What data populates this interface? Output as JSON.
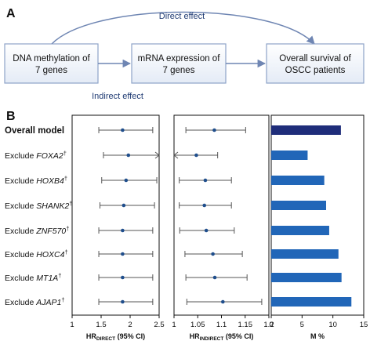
{
  "panel_a": {
    "letter": "A",
    "boxes": [
      {
        "line1": "DNA methylation of",
        "line2": "7 genes"
      },
      {
        "line1": "mRNA expression of",
        "line2": "7 genes"
      },
      {
        "line1": "Overall survival of",
        "line2": "OSCC patients"
      }
    ],
    "direct_label": "Direct effect",
    "indirect_label": "Indirect effect"
  },
  "panel_b": {
    "letter": "B",
    "rows": [
      {
        "prefix": "Overall model",
        "gene": "",
        "sup": ""
      },
      {
        "prefix": "Exclude ",
        "gene": "FOXA2",
        "sup": "†"
      },
      {
        "prefix": "Exclude ",
        "gene": "HOXB4",
        "sup": "†"
      },
      {
        "prefix": "Exclude ",
        "gene": "SHANK2",
        "sup": "†"
      },
      {
        "prefix": "Exclude ",
        "gene": "ZNF570",
        "sup": "†"
      },
      {
        "prefix": "Exclude ",
        "gene": "HOXC4",
        "sup": "†"
      },
      {
        "prefix": "Exclude ",
        "gene": "MT1A",
        "sup": "†"
      },
      {
        "prefix": "Exclude ",
        "gene": "AJAP1",
        "sup": "†"
      }
    ],
    "colors": {
      "point": "#1f4e8c",
      "bar": "#2166b8",
      "bar_first": "#1f2d7a",
      "whisker": "#555555"
    }
  },
  "chart_data": [
    {
      "type": "scatter",
      "title": "",
      "xlabel": "HR_DIRECT (95% CI)",
      "xlabel_main": "HR",
      "xlabel_sub": "DIRECT",
      "xlabel_tail": " (95% CI)",
      "xlim": [
        1,
        2.5
      ],
      "xticks": [
        "1",
        "1.5",
        "2",
        "2.5"
      ],
      "categories": [
        "Overall model",
        "Exclude FOXA2",
        "Exclude HOXB4",
        "Exclude SHANK2",
        "Exclude ZNF570",
        "Exclude HOXC4",
        "Exclude MT1A",
        "Exclude AJAP1"
      ],
      "estimate": [
        1.87,
        1.97,
        1.93,
        1.89,
        1.87,
        1.87,
        1.87,
        1.87
      ],
      "lower": [
        1.46,
        1.54,
        1.51,
        1.48,
        1.46,
        1.46,
        1.46,
        1.46
      ],
      "upper": [
        2.39,
        2.5,
        2.46,
        2.42,
        2.39,
        2.39,
        2.39,
        2.39
      ],
      "arrow_right": [
        false,
        true,
        false,
        false,
        false,
        false,
        false,
        false
      ]
    },
    {
      "type": "scatter",
      "title": "",
      "xlabel": "HR_INDIRECT (95% CI)",
      "xlabel_main": "HR",
      "xlabel_sub": "INDIRECT",
      "xlabel_tail": " (95% CI)",
      "xlim": [
        1,
        1.2
      ],
      "xticks": [
        "1",
        "1.05",
        "1.1",
        "1.15",
        "1.2"
      ],
      "categories": [
        "Overall model",
        "Exclude FOXA2",
        "Exclude HOXB4",
        "Exclude SHANK2",
        "Exclude ZNF570",
        "Exclude HOXC4",
        "Exclude MT1A",
        "Exclude AJAP1"
      ],
      "estimate": [
        1.085,
        1.047,
        1.066,
        1.064,
        1.068,
        1.082,
        1.086,
        1.103
      ],
      "lower": [
        1.025,
        1.0,
        1.011,
        1.011,
        1.012,
        1.023,
        1.025,
        1.027
      ],
      "upper": [
        1.151,
        1.092,
        1.121,
        1.121,
        1.127,
        1.144,
        1.154,
        1.185
      ],
      "arrow_left": [
        false,
        true,
        false,
        false,
        false,
        false,
        false,
        false
      ]
    },
    {
      "type": "bar",
      "title": "",
      "xlabel": "M %",
      "xlim": [
        0,
        15
      ],
      "xticks": [
        "0",
        "5",
        "10",
        "15"
      ],
      "categories": [
        "Overall model",
        "Exclude FOXA2",
        "Exclude HOXB4",
        "Exclude SHANK2",
        "Exclude ZNF570",
        "Exclude HOXC4",
        "Exclude MT1A",
        "Exclude AJAP1"
      ],
      "values": [
        11.3,
        5.9,
        8.6,
        8.9,
        9.4,
        10.9,
        11.4,
        13.0
      ]
    }
  ]
}
